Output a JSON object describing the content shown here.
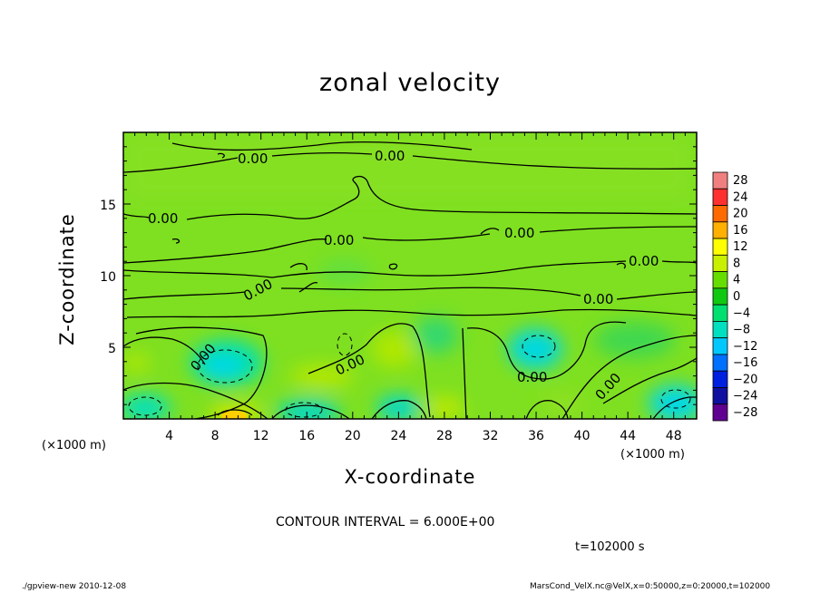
{
  "chart_data": {
    "type": "heatmap",
    "title": "zonal velocity",
    "xlabel": "X-coordinate",
    "ylabel": "Z-coordinate",
    "x_unit_label": "(×1000 m)",
    "xlim": [
      0,
      50
    ],
    "ylim": [
      0,
      20
    ],
    "x_ticks": [
      4,
      8,
      12,
      16,
      20,
      24,
      28,
      32,
      36,
      40,
      44,
      48
    ],
    "y_ticks": [
      5,
      10,
      15
    ],
    "colorbar": {
      "levels": [
        28,
        24,
        20,
        16,
        12,
        8,
        4,
        0,
        -4,
        -8,
        -12,
        -16,
        -20,
        -24,
        -28
      ],
      "colors": [
        "#f08080",
        "#ff3030",
        "#ff6a00",
        "#ffb000",
        "#ffff00",
        "#c8f000",
        "#66dd00",
        "#10c810",
        "#00e070",
        "#00e0c0",
        "#00c8ff",
        "#0070ff",
        "#0020e0",
        "#1010a0",
        "#600090"
      ]
    },
    "contour_label": "0.00",
    "contour_interval_text": "CONTOUR INTERVAL = 6.000E+00",
    "annotations": [
      "t=102000 s"
    ]
  },
  "footer": {
    "left": "./gpview-new  2010-12-08",
    "right": "MarsCond_VelX.nc@VelX,x=0:50000,z=0:20000,t=102000"
  }
}
